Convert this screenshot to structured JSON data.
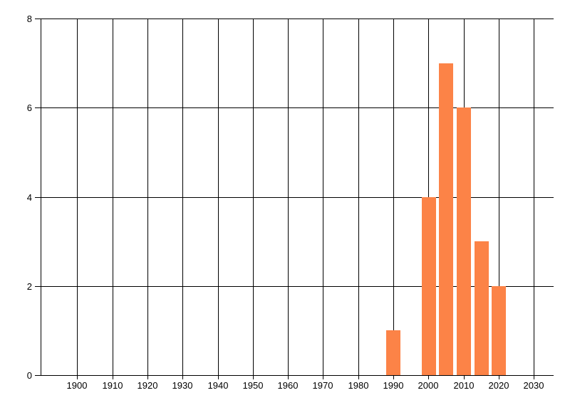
{
  "chart_data": {
    "type": "bar",
    "title": "",
    "xlabel": "",
    "ylabel": "",
    "categories": [
      1990,
      2000,
      2005,
      2010,
      2015,
      2020
    ],
    "values": [
      1,
      4,
      7,
      6,
      3,
      2
    ],
    "bars": [
      {
        "year": 1990,
        "value": 1
      },
      {
        "year": 2000,
        "value": 4
      },
      {
        "year": 2005,
        "value": 7
      },
      {
        "year": 2010,
        "value": 6
      },
      {
        "year": 2015,
        "value": 3
      },
      {
        "year": 2020,
        "value": 2
      }
    ],
    "x_tick_labels": [
      "1900",
      "1910",
      "1920",
      "1930",
      "1940",
      "1950",
      "1960",
      "1970",
      "1980",
      "1990",
      "2000",
      "2010",
      "2020",
      "2030"
    ],
    "x_ticks": [
      1900,
      1910,
      1920,
      1930,
      1940,
      1950,
      1960,
      1970,
      1980,
      1990,
      2000,
      2010,
      2020,
      2030
    ],
    "y_tick_labels": [
      "0",
      "2",
      "4",
      "6",
      "8"
    ],
    "y_ticks": [
      0,
      2,
      4,
      6,
      8
    ],
    "xlim": [
      1889.6,
      2035.6
    ],
    "ylim": [
      0,
      8
    ],
    "bar_width_years": 4,
    "grid": "on",
    "legend": "none",
    "colors": {
      "bar": "#fc8347",
      "grid": "#000000",
      "axis": "#000000",
      "text": "#000000",
      "background": "#ffffff"
    }
  }
}
